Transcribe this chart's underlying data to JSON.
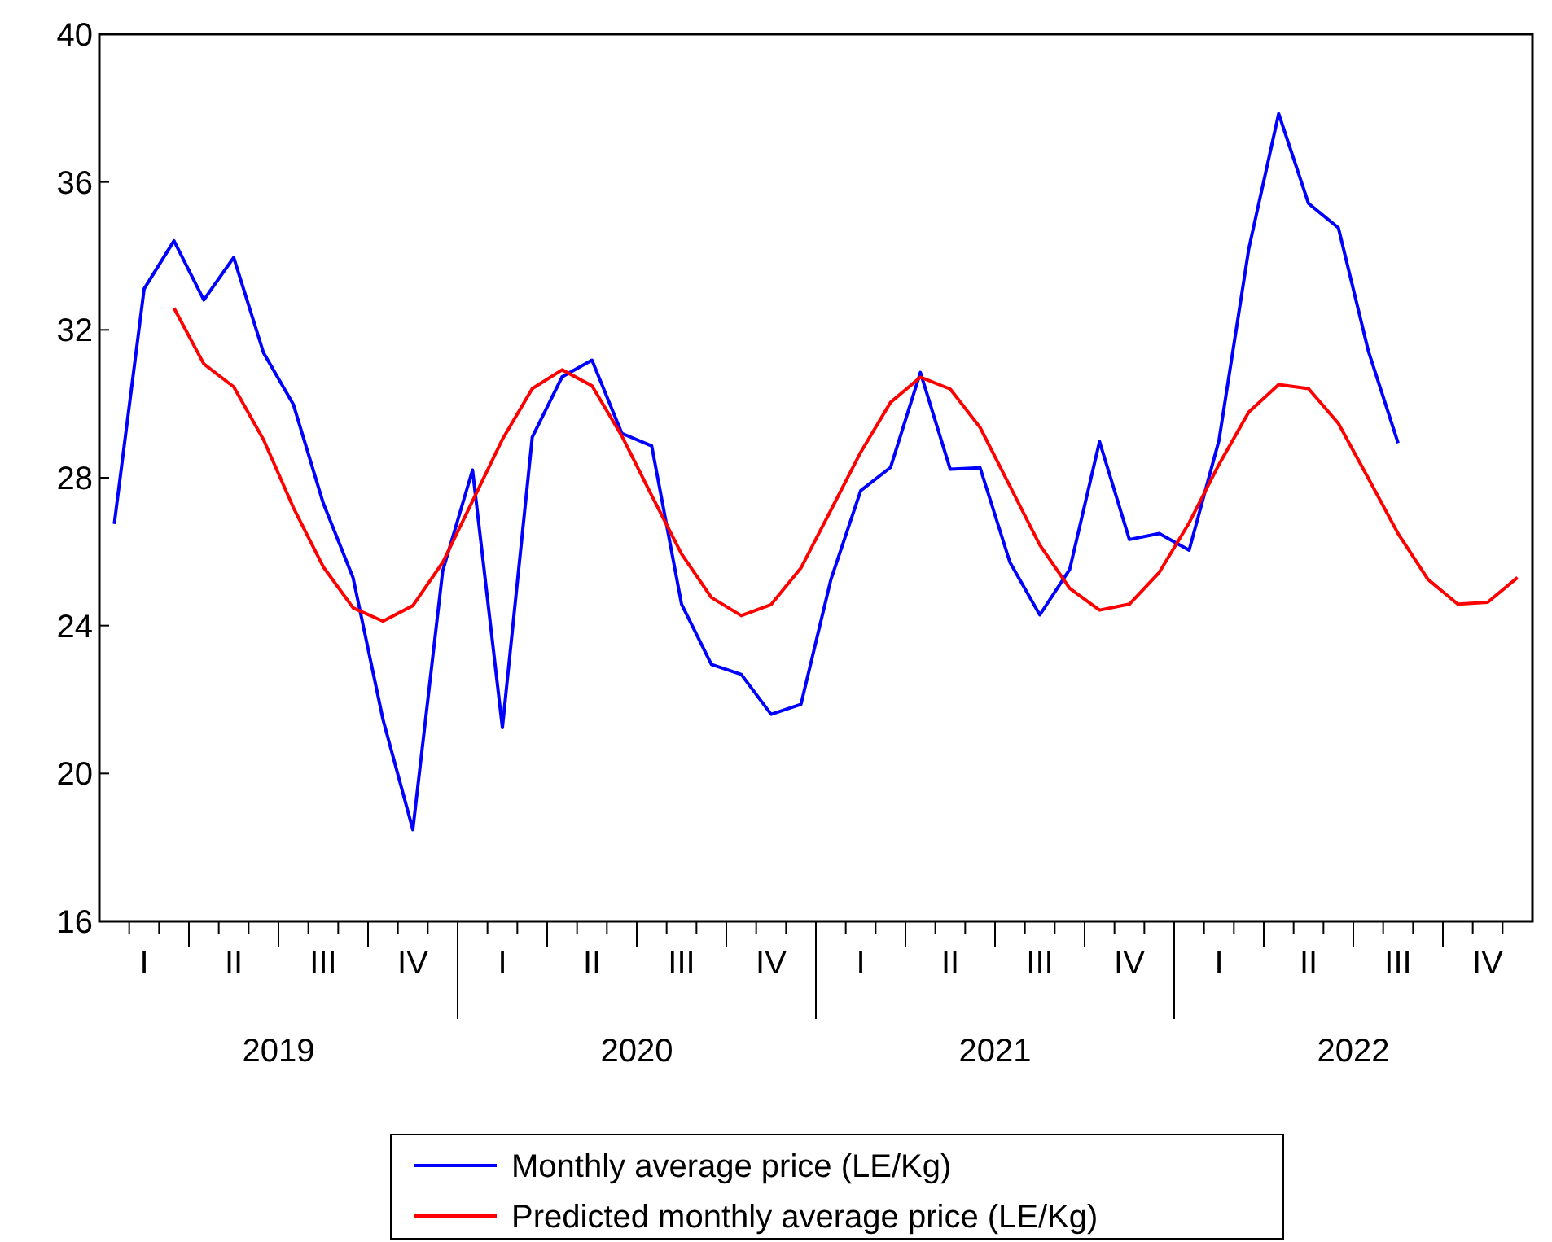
{
  "chart_data": {
    "type": "line",
    "categories": [
      null,
      "I",
      null,
      null,
      "II",
      null,
      null,
      "III",
      null,
      null,
      "IV",
      null,
      null,
      "I",
      null,
      null,
      "II",
      null,
      null,
      "III",
      null,
      null,
      "IV",
      null,
      null,
      "I",
      null,
      null,
      "II",
      null,
      null,
      "III",
      null,
      null,
      "IV",
      null,
      null,
      "I",
      null,
      null,
      "II",
      null,
      null,
      "III",
      null,
      null,
      "IV",
      null
    ],
    "series": [
      {
        "name": "Monthly average price (LE/Kg)",
        "color": "#0000ff",
        "values": [
          26.75,
          33.11,
          34.41,
          32.81,
          33.96,
          31.38,
          29.98,
          27.31,
          25.29,
          21.46,
          18.48,
          25.48,
          28.21,
          21.24,
          29.1,
          30.73,
          31.18,
          29.2,
          28.86,
          24.58,
          22.95,
          22.68,
          21.6,
          21.87,
          25.24,
          27.65,
          28.28,
          30.85,
          28.23,
          28.27,
          25.71,
          24.29,
          25.52,
          28.98,
          26.33,
          26.49,
          26.04,
          29.01,
          34.2,
          37.85,
          35.42,
          34.76,
          31.44,
          28.94,
          null,
          null,
          null,
          null
        ]
      },
      {
        "name": "Predicted monthly average price (LE/Kg)",
        "color": "#ff0000",
        "values": [
          null,
          null,
          32.59,
          31.08,
          30.46,
          29.03,
          27.19,
          25.59,
          24.48,
          24.12,
          24.54,
          25.71,
          27.37,
          29.04,
          30.41,
          30.92,
          30.49,
          29.13,
          27.52,
          25.94,
          24.76,
          24.27,
          24.57,
          25.56,
          27.12,
          28.69,
          30.04,
          30.72,
          30.4,
          29.36,
          27.77,
          26.18,
          25.01,
          24.42,
          24.58,
          25.44,
          26.78,
          28.36,
          29.78,
          30.52,
          30.41,
          29.47,
          27.99,
          26.49,
          25.25,
          24.58,
          24.63,
          25.3
        ]
      }
    ],
    "annotations": [
      "2019",
      "2020",
      "2021",
      "2022"
    ],
    "ylim": [
      16,
      40
    ],
    "yticks": [
      16,
      20,
      24,
      28,
      32,
      36,
      40
    ],
    "grid": false,
    "legend": "bottom",
    "marker": "none",
    "line_style": "solid"
  }
}
